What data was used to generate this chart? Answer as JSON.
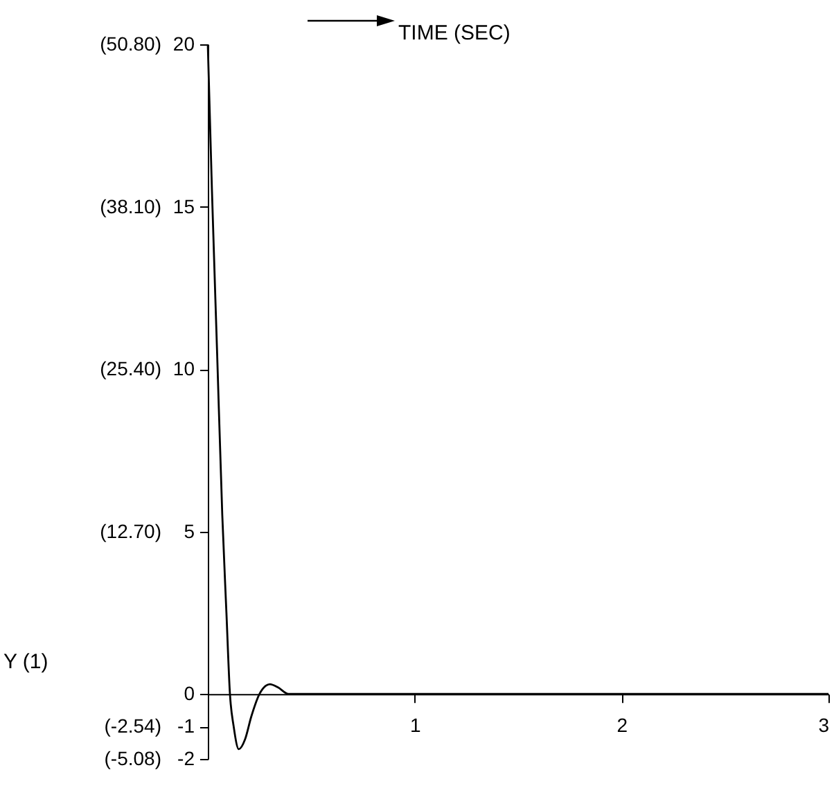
{
  "chart_data": {
    "type": "line",
    "xlabel": "TIME (SEC)",
    "y2label": "Y (1)",
    "x": [
      0,
      0.02,
      0.045,
      0.07,
      0.09,
      0.107,
      0.125,
      0.15,
      0.18,
      0.21,
      0.25,
      0.28,
      0.3,
      0.34,
      0.39,
      0.5,
      1,
      2,
      3
    ],
    "series": [
      {
        "color": "#000000",
        "values": [
          20,
          15.5,
          10.5,
          5.5,
          2.5,
          0,
          -1,
          -1.7,
          -1.4,
          -0.7,
          0,
          0.25,
          0.3,
          0.2,
          0,
          0,
          0,
          0,
          0
        ]
      }
    ],
    "xlim": [
      0,
      3
    ],
    "xticks": [
      1,
      2,
      3
    ],
    "ylim": [
      -2,
      20
    ],
    "yticks": [
      20,
      15,
      10,
      5,
      0,
      -1,
      -2
    ],
    "y2lim": [
      -5.08,
      50.8
    ],
    "y2ticks": [
      {
        "value": 50.8,
        "label": "(50.80)"
      },
      {
        "value": 38.1,
        "label": "(38.10)"
      },
      {
        "value": 25.4,
        "label": "(25.40)"
      },
      {
        "value": 12.7,
        "label": "(12.70)"
      },
      {
        "value": -2.54,
        "label": "(-2.54)"
      },
      {
        "value": -5.08,
        "label": "(-5.08)"
      }
    ],
    "grid": false,
    "marker": "none",
    "line_style": "solid"
  }
}
